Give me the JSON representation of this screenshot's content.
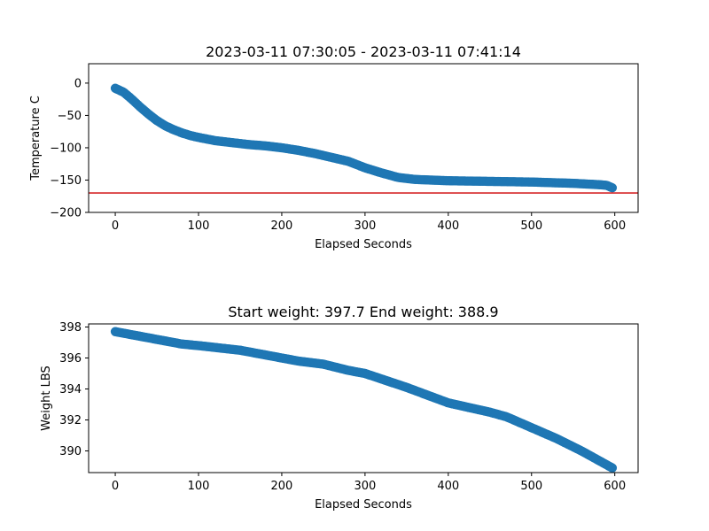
{
  "chart_data": [
    {
      "type": "scatter",
      "title": "2023-03-11 07:30:05 - 2023-03-11 07:41:14",
      "xlabel": "Elapsed Seconds",
      "ylabel": "Temperature C",
      "xlim": [
        -32,
        628
      ],
      "ylim": [
        -200,
        30
      ],
      "xticks": [
        0,
        100,
        200,
        300,
        400,
        500,
        600
      ],
      "yticks": [
        -200,
        -150,
        -100,
        -50,
        0
      ],
      "grid": false,
      "marker_color": "#1f77b4",
      "reference_line": {
        "y": -170,
        "color": "#d62728"
      },
      "keypoints": {
        "x": [
          0,
          10,
          20,
          30,
          40,
          50,
          60,
          70,
          80,
          90,
          100,
          120,
          140,
          160,
          180,
          200,
          220,
          240,
          260,
          280,
          290,
          300,
          320,
          340,
          360,
          380,
          400,
          450,
          500,
          550,
          580,
          590,
          597
        ],
        "y": [
          -8,
          -14,
          -25,
          -37,
          -48,
          -58,
          -66,
          -72,
          -77,
          -81,
          -84,
          -89,
          -92,
          -95,
          -97,
          -100,
          -104,
          -109,
          -115,
          -121,
          -126,
          -131,
          -139,
          -146,
          -149,
          -150,
          -151,
          -152,
          -153,
          -155,
          -157,
          -158,
          -162
        ]
      }
    },
    {
      "type": "scatter",
      "title": "Start weight: 397.7 End weight: 388.9",
      "xlabel": "Elapsed Seconds",
      "ylabel": "Weight LBS",
      "xlim": [
        -32,
        628
      ],
      "ylim": [
        388.6,
        398.2
      ],
      "xticks": [
        0,
        100,
        200,
        300,
        400,
        500,
        600
      ],
      "yticks": [
        390,
        392,
        394,
        396,
        398
      ],
      "grid": false,
      "marker_color": "#1f77b4",
      "keypoints": {
        "x": [
          0,
          20,
          50,
          80,
          100,
          150,
          200,
          220,
          250,
          280,
          300,
          350,
          400,
          450,
          470,
          500,
          530,
          560,
          597
        ],
        "y": [
          397.7,
          397.5,
          397.2,
          396.9,
          396.8,
          396.5,
          396.0,
          395.8,
          395.6,
          395.2,
          395.0,
          394.1,
          393.1,
          392.5,
          392.2,
          391.5,
          390.8,
          390.0,
          388.9
        ]
      }
    }
  ]
}
